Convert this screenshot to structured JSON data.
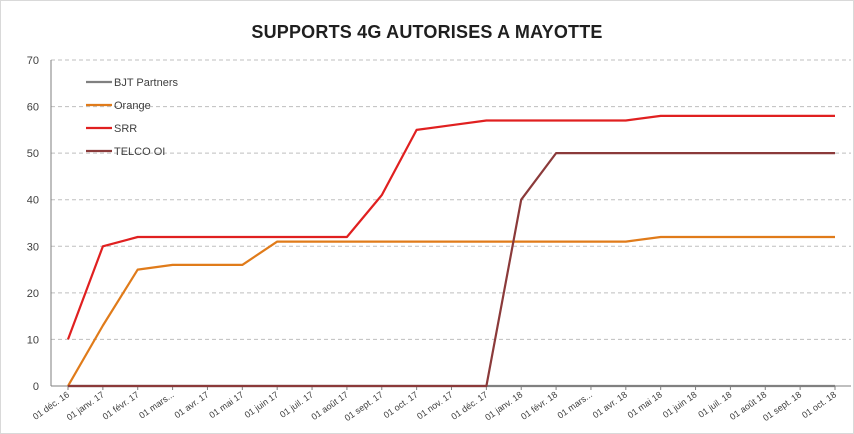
{
  "chart_data": {
    "type": "line",
    "title": "SUPPORTS 4G AUTORISES A MAYOTTE",
    "xlabel": "",
    "ylabel": "",
    "ylim": [
      0,
      70
    ],
    "yticks": [
      0,
      10,
      20,
      30,
      40,
      50,
      60,
      70
    ],
    "grid": "horizontal dashed",
    "legend_position": "top-left",
    "categories": [
      "01 déc. 16",
      "01 janv. 17",
      "01 févr. 17",
      "01 mars...",
      "01 avr. 17",
      "01 mai 17",
      "01 juin 17",
      "01 juil. 17",
      "01 août 17",
      "01 sept. 17",
      "01 oct. 17",
      "01 nov. 17",
      "01 déc. 17",
      "01 janv. 18",
      "01 févr. 18",
      "01 mars...",
      "01 avr. 18",
      "01 mai 18",
      "01 juin 18",
      "01 juil. 18",
      "01 août 18",
      "01 sept. 18",
      "01 oct. 18"
    ],
    "series": [
      {
        "name": "BJT Partners",
        "color": "#808080",
        "values": [
          0,
          0,
          0,
          0,
          0,
          0,
          0,
          0,
          0,
          0,
          0,
          0,
          0,
          0,
          0,
          0,
          0,
          0,
          0,
          0,
          0,
          0,
          0
        ]
      },
      {
        "name": "Orange",
        "color": "#e07b1a",
        "values": [
          0,
          13,
          25,
          26,
          26,
          26,
          31,
          31,
          31,
          31,
          31,
          31,
          31,
          31,
          31,
          31,
          31,
          32,
          32,
          32,
          32,
          32,
          32
        ]
      },
      {
        "name": "SRR",
        "color": "#e02020",
        "values": [
          10,
          30,
          32,
          32,
          32,
          32,
          32,
          32,
          32,
          41,
          55,
          56,
          57,
          57,
          57,
          57,
          57,
          58,
          58,
          58,
          58,
          58,
          58
        ]
      },
      {
        "name": "TELCO OI",
        "color": "#8b3a3a",
        "values": [
          0,
          0,
          0,
          0,
          0,
          0,
          0,
          0,
          0,
          0,
          0,
          0,
          0,
          40,
          50,
          50,
          50,
          50,
          50,
          50,
          50,
          50,
          50
        ]
      }
    ]
  }
}
